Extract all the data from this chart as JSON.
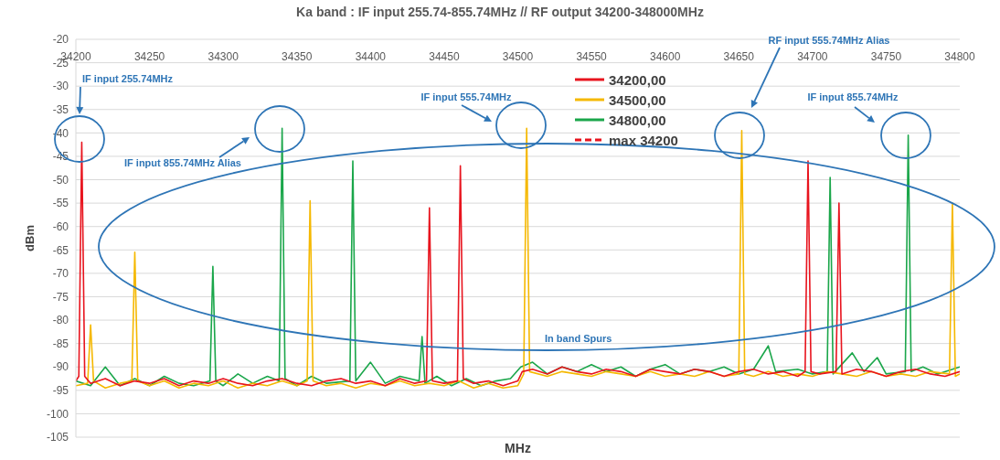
{
  "chart_data": {
    "type": "line",
    "title": "Ka band : IF input 255.74-855.74MHz // RF output  34200-348000MHz",
    "xlabel": "MHz",
    "ylabel": "dBm",
    "xlim": [
      34200,
      34800
    ],
    "xticks": [
      34200,
      34250,
      34300,
      34350,
      34400,
      34450,
      34500,
      34550,
      34600,
      34650,
      34700,
      34750,
      34800
    ],
    "ylim": [
      -105,
      -20
    ],
    "yticks": [
      -105,
      -100,
      -95,
      -90,
      -85,
      -80,
      -75,
      -70,
      -65,
      -60,
      -55,
      -50,
      -45,
      -40,
      -35,
      -30,
      -25,
      -20
    ],
    "grid": "y",
    "legend": "top",
    "marker": "none",
    "annotations": [
      "IF input 255.74MHz",
      "IF input 855.74MHz Alias",
      "IF input 555.74MHz",
      "RF input 555.74MHz Alias",
      "IF input 855.74MHz",
      "In band Spurs"
    ],
    "series": [
      {
        "name": "34200,00",
        "color": "#e8141e",
        "x": [
          34200,
          34202,
          34204,
          34206,
          34210,
          34220,
          34230,
          34240,
          34250,
          34260,
          34270,
          34280,
          34290,
          34300,
          34310,
          34320,
          34330,
          34340,
          34350,
          34360,
          34370,
          34380,
          34390,
          34400,
          34410,
          34420,
          34430,
          34438,
          34440,
          34442,
          34450,
          34459,
          34461,
          34463,
          34470,
          34480,
          34490,
          34500,
          34503,
          34510,
          34520,
          34530,
          34540,
          34550,
          34560,
          34570,
          34580,
          34590,
          34600,
          34610,
          34620,
          34630,
          34640,
          34650,
          34660,
          34670,
          34680,
          34690,
          34695,
          34697,
          34699,
          34705,
          34716,
          34718,
          34720,
          34730,
          34740,
          34750,
          34760,
          34770,
          34780,
          34790,
          34800
        ],
        "values": [
          -93,
          -92,
          -42,
          -92,
          -93.5,
          -92.5,
          -94,
          -93,
          -93.5,
          -92.5,
          -94,
          -93,
          -93.5,
          -92.5,
          -93.5,
          -94,
          -93,
          -92.5,
          -93.5,
          -94,
          -93,
          -92.5,
          -93.5,
          -93,
          -94,
          -92.5,
          -93.5,
          -93,
          -56,
          -93,
          -93.5,
          -93,
          -47,
          -92.5,
          -93.5,
          -93,
          -94,
          -93,
          -91,
          -90.5,
          -91.5,
          -90,
          -91,
          -91.5,
          -90.5,
          -91,
          -92,
          -90.5,
          -91,
          -91.5,
          -90.5,
          -91,
          -92,
          -91,
          -90.5,
          -91.5,
          -91,
          -92,
          -91,
          -46,
          -91,
          -91.5,
          -91,
          -55,
          -91.5,
          -90.5,
          -91,
          -92,
          -91,
          -90.5,
          -91.5,
          -92,
          -91
        ]
      },
      {
        "name": "34500,00",
        "color": "#f5b800",
        "x": [
          34200,
          34208,
          34210,
          34212,
          34220,
          34230,
          34238,
          34240,
          34242,
          34250,
          34260,
          34270,
          34280,
          34290,
          34300,
          34310,
          34320,
          34330,
          34340,
          34350,
          34357,
          34359,
          34361,
          34370,
          34380,
          34390,
          34400,
          34410,
          34420,
          34430,
          34440,
          34450,
          34460,
          34470,
          34480,
          34490,
          34500,
          34504,
          34506,
          34508,
          34520,
          34530,
          34540,
          34550,
          34560,
          34570,
          34580,
          34590,
          34600,
          34610,
          34620,
          34630,
          34640,
          34650,
          34652,
          34654,
          34660,
          34670,
          34680,
          34690,
          34700,
          34710,
          34720,
          34730,
          34740,
          34750,
          34760,
          34770,
          34780,
          34793,
          34795,
          34797,
          34800
        ],
        "values": [
          -94,
          -93.5,
          -81,
          -93,
          -94.5,
          -93.5,
          -93,
          -65.5,
          -93,
          -94,
          -93,
          -94.5,
          -93.5,
          -94,
          -93,
          -94.5,
          -93.5,
          -94,
          -93,
          -94,
          -93,
          -54.5,
          -93,
          -94,
          -93.5,
          -94.5,
          -93.5,
          -94,
          -93,
          -94,
          -93.5,
          -94,
          -93,
          -94.5,
          -93.5,
          -94.5,
          -94,
          -91.5,
          -39,
          -91,
          -92,
          -91,
          -91.5,
          -92,
          -91,
          -91.5,
          -92,
          -91,
          -92,
          -91.5,
          -92,
          -91,
          -92,
          -91.5,
          -39.5,
          -91.5,
          -92,
          -91,
          -92,
          -91.5,
          -92,
          -91,
          -91.5,
          -92,
          -91,
          -92,
          -91.5,
          -92,
          -91,
          -91.5,
          -55,
          -92,
          -91.5
        ]
      },
      {
        "name": "34800,00",
        "color": "#1aa64a",
        "x": [
          34200,
          34210,
          34220,
          34230,
          34240,
          34250,
          34260,
          34270,
          34280,
          34291,
          34293,
          34295,
          34300,
          34310,
          34320,
          34330,
          34338,
          34340,
          34342,
          34350,
          34360,
          34370,
          34386,
          34388,
          34390,
          34400,
          34410,
          34420,
          34433,
          34435,
          34437,
          34445,
          34455,
          34465,
          34475,
          34485,
          34495,
          34502,
          34510,
          34520,
          34530,
          34540,
          34550,
          34560,
          34570,
          34580,
          34590,
          34600,
          34610,
          34620,
          34630,
          34640,
          34650,
          34660,
          34670,
          34675,
          34690,
          34700,
          34710,
          34712,
          34714,
          34727,
          34735,
          34744,
          34750,
          34763,
          34765,
          34767,
          34775,
          34785,
          34800
        ],
        "values": [
          -93,
          -94,
          -90,
          -94,
          -92.5,
          -94,
          -92,
          -93.5,
          -94,
          -93,
          -68.5,
          -93,
          -94,
          -91.5,
          -93.5,
          -92,
          -93,
          -39,
          -92.5,
          -94,
          -92,
          -93.5,
          -93,
          -46,
          -93,
          -89,
          -93.5,
          -92,
          -93,
          -83.5,
          -93.5,
          -92,
          -94,
          -92.5,
          -94,
          -93,
          -92.5,
          -90,
          -89,
          -91.5,
          -90,
          -91,
          -89.5,
          -91,
          -90,
          -92,
          -90.5,
          -89.5,
          -91.5,
          -90.5,
          -91,
          -90,
          -91.5,
          -90.5,
          -85.5,
          -91,
          -90.5,
          -91.5,
          -91,
          -49.5,
          -91.5,
          -87,
          -91,
          -88,
          -91.5,
          -91,
          -40.5,
          -91,
          -90,
          -91.5,
          -90
        ]
      },
      {
        "name": "max 34200",
        "color": "#e8141e",
        "line_style": "dashed"
      }
    ]
  }
}
